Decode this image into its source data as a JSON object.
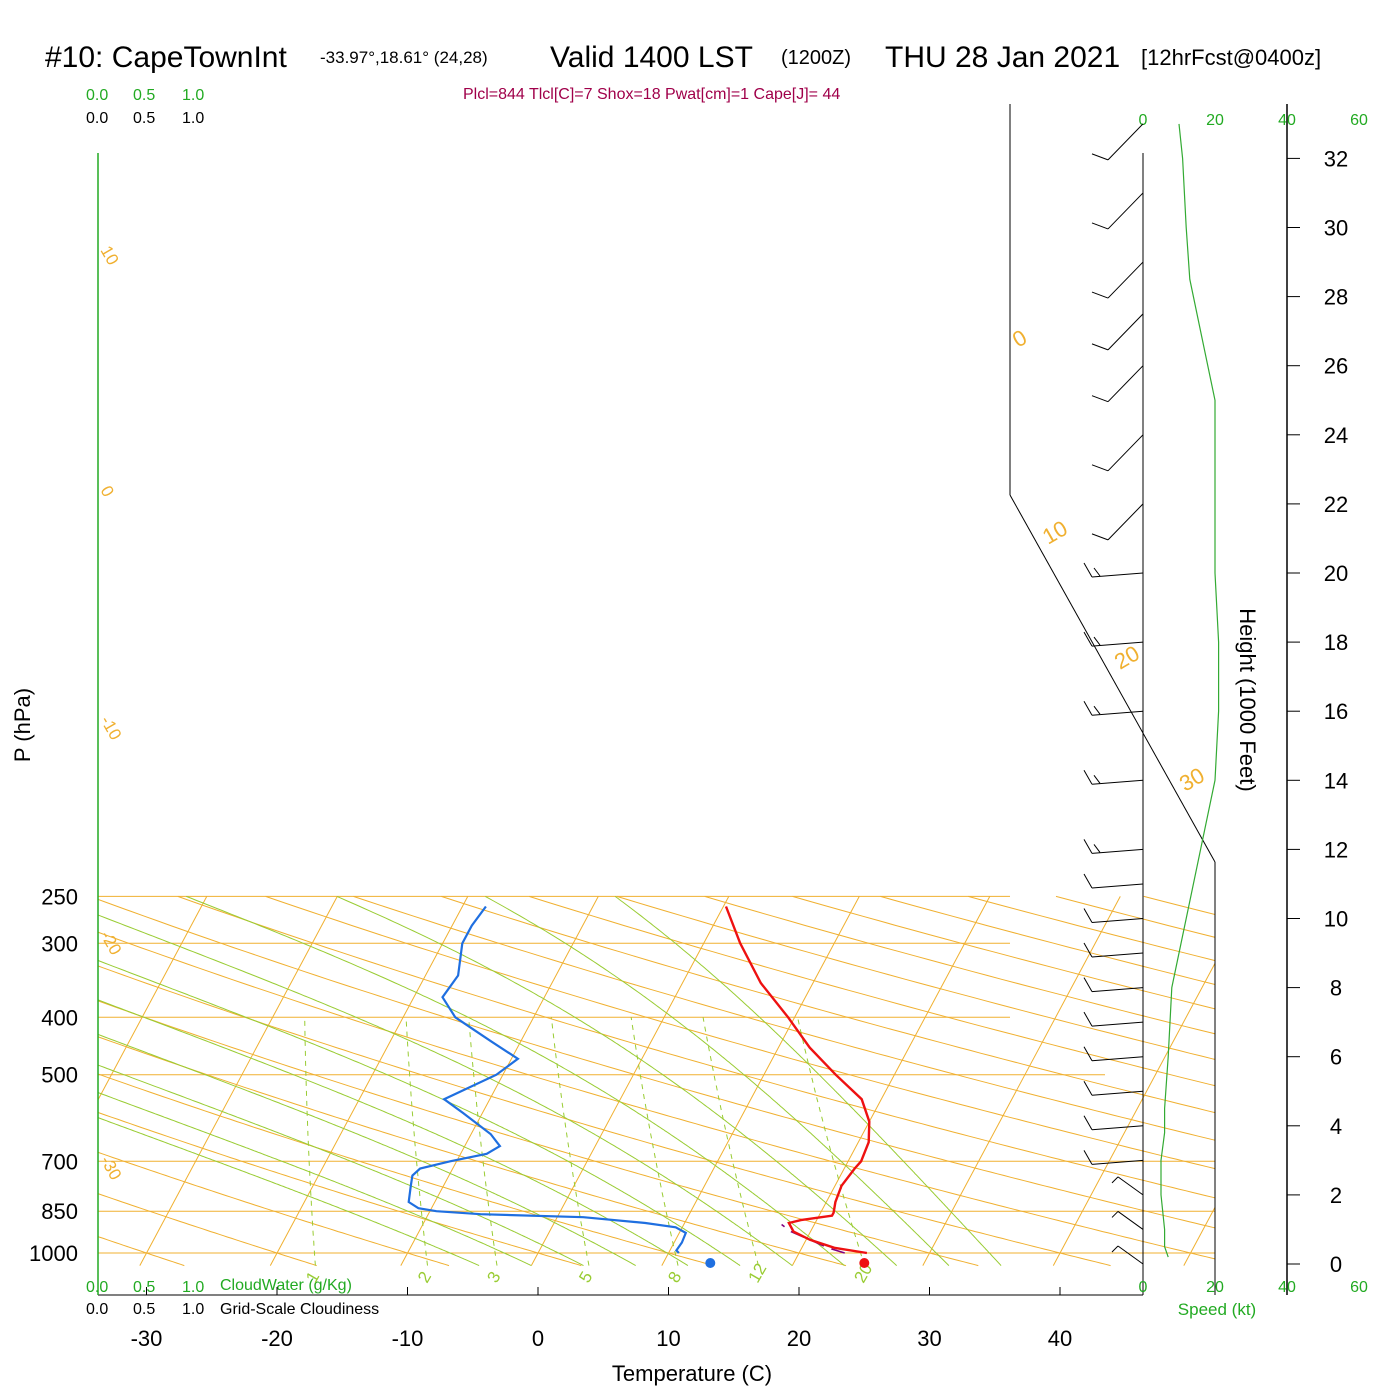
{
  "header": {
    "station": "#10: CapeTownInt",
    "coords": "-33.97°,18.61° (24,28)",
    "valid": "Valid 1400 LST",
    "zulu": "(1200Z)",
    "date": "THU 28 Jan 2021",
    "forecast": "[12hrFcst@0400z]",
    "indices": "Plcl=844 Tlcl[C]=7 Shox=18 Pwat[cm]=1 Cape[J]= 44"
  },
  "colors": {
    "temperature": "#ee1111",
    "dewpoint": "#1f6fe0",
    "parcel": "#800080",
    "isotherm": "#f0b030",
    "dry_adiabat": "#f0b030",
    "moist_adiabat": "#99cc33",
    "mixing_ratio": "#99cc33",
    "speed": "#33aa33",
    "axis_green": "#22aa22"
  },
  "labels": {
    "ylabel": "P (hPa)",
    "xlabel": "Temperature (C)",
    "height_label": "Height (1000 Feet)",
    "speed_label": "Speed (kt)",
    "cloudwater": "CloudWater (g/Kg)",
    "cloudiness": "Grid-Scale Cloudiness",
    "scale_top_green": [
      "0.0",
      "0.5",
      "1.0"
    ],
    "scale_top_black": [
      "0.0",
      "0.5",
      "1.0"
    ],
    "scale_bottom_green": [
      "0.0",
      "0.5",
      "1.0"
    ],
    "scale_bottom_black": [
      "0.0",
      "0.5",
      "1.0"
    ]
  },
  "chart_data": {
    "type": "line",
    "pressure_ticks": [
      250,
      300,
      400,
      500,
      700,
      850,
      1000
    ],
    "temperature_ticks": [
      -30,
      -20,
      -10,
      0,
      10,
      20,
      30,
      40
    ],
    "xlim": [
      -34,
      36
    ],
    "ylim": [
      1050,
      250
    ],
    "height_ticks": [
      0,
      2,
      4,
      6,
      8,
      10,
      12,
      14,
      16,
      18,
      20,
      22,
      24,
      26,
      28,
      30,
      32
    ],
    "speed_ticks": [
      0,
      20,
      40,
      60
    ],
    "isotherm_labels_left": [
      "10",
      "0",
      "-10",
      "-20",
      "-30"
    ],
    "isotherm_labels_right": [
      "0",
      "10",
      "20",
      "30"
    ],
    "mixing_ratio_labels": [
      "1",
      "2",
      "3",
      "5",
      "8",
      "12",
      "20"
    ],
    "temperature_profile": [
      {
        "p": 1000,
        "t": 25.2
      },
      {
        "p": 980,
        "t": 22.5
      },
      {
        "p": 950,
        "t": 20.3
      },
      {
        "p": 920,
        "t": 18.7
      },
      {
        "p": 890,
        "t": 18.0
      },
      {
        "p": 880,
        "t": 18.8
      },
      {
        "p": 865,
        "t": 21.0
      },
      {
        "p": 855,
        "t": 21.0
      },
      {
        "p": 820,
        "t": 20.7
      },
      {
        "p": 770,
        "t": 20.5
      },
      {
        "p": 720,
        "t": 20.8
      },
      {
        "p": 700,
        "t": 21.0
      },
      {
        "p": 650,
        "t": 20.8
      },
      {
        "p": 600,
        "t": 20.0
      },
      {
        "p": 550,
        "t": 18.5
      },
      {
        "p": 500,
        "t": 15.5
      },
      {
        "p": 450,
        "t": 12.4
      },
      {
        "p": 400,
        "t": 9.5
      },
      {
        "p": 350,
        "t": 6.0
      },
      {
        "p": 300,
        "t": 2.8
      },
      {
        "p": 260,
        "t": 0.2
      }
    ],
    "dewpoint_profile": [
      {
        "p": 1000,
        "t": 10.8
      },
      {
        "p": 990,
        "t": 10.5
      },
      {
        "p": 960,
        "t": 10.6
      },
      {
        "p": 925,
        "t": 10.5
      },
      {
        "p": 905,
        "t": 9.5
      },
      {
        "p": 890,
        "t": 7.0
      },
      {
        "p": 870,
        "t": 2.0
      },
      {
        "p": 860,
        "t": -6.0
      },
      {
        "p": 850,
        "t": -9.5
      },
      {
        "p": 840,
        "t": -11.0
      },
      {
        "p": 820,
        "t": -12.0
      },
      {
        "p": 770,
        "t": -12.5
      },
      {
        "p": 740,
        "t": -12.8
      },
      {
        "p": 720,
        "t": -12.5
      },
      {
        "p": 700,
        "t": -10.5
      },
      {
        "p": 680,
        "t": -8.0
      },
      {
        "p": 660,
        "t": -7.3
      },
      {
        "p": 630,
        "t": -8.5
      },
      {
        "p": 580,
        "t": -11.5
      },
      {
        "p": 550,
        "t": -13.5
      },
      {
        "p": 500,
        "t": -10.5
      },
      {
        "p": 470,
        "t": -9.5
      },
      {
        "p": 440,
        "t": -12.2
      },
      {
        "p": 400,
        "t": -16.0
      },
      {
        "p": 370,
        "t": -17.8
      },
      {
        "p": 340,
        "t": -17.5
      },
      {
        "p": 300,
        "t": -18.5
      },
      {
        "p": 280,
        "t": -18.5
      },
      {
        "p": 260,
        "t": -18.2
      }
    ],
    "parcel_profile": [
      {
        "p": 1000,
        "t": 23.5
      },
      {
        "p": 980,
        "t": 22.0
      },
      {
        "p": 950,
        "t": 20.3
      },
      {
        "p": 920,
        "t": 18.5
      },
      {
        "p": 895,
        "t": 17.5
      }
    ],
    "surface_temperature": {
      "p": 1000,
      "t": 25.0
    },
    "surface_dewpoint": {
      "p": 1000,
      "t": 13.2
    },
    "speed_profile": [
      {
        "h": 0.2,
        "s": 7
      },
      {
        "h": 0.5,
        "s": 6
      },
      {
        "h": 1.0,
        "s": 6
      },
      {
        "h": 2.0,
        "s": 5
      },
      {
        "h": 3.0,
        "s": 5
      },
      {
        "h": 3.8,
        "s": 6
      },
      {
        "h": 4.5,
        "s": 6
      },
      {
        "h": 6.0,
        "s": 7
      },
      {
        "h": 8.0,
        "s": 8
      },
      {
        "h": 10.0,
        "s": 12
      },
      {
        "h": 12.0,
        "s": 16
      },
      {
        "h": 14.0,
        "s": 20
      },
      {
        "h": 16.0,
        "s": 21
      },
      {
        "h": 18.0,
        "s": 21
      },
      {
        "h": 20.0,
        "s": 20
      },
      {
        "h": 22.0,
        "s": 20
      },
      {
        "h": 25.0,
        "s": 20
      },
      {
        "h": 27.0,
        "s": 16
      },
      {
        "h": 28.5,
        "s": 13
      },
      {
        "h": 30.0,
        "s": 12
      },
      {
        "h": 32.0,
        "s": 11
      },
      {
        "h": 33.0,
        "s": 10
      }
    ],
    "wind_barbs": [
      {
        "h": 33.0,
        "s": 10,
        "kind": "long"
      },
      {
        "h": 31.0,
        "s": 10,
        "kind": "long"
      },
      {
        "h": 29.0,
        "s": 10,
        "kind": "long"
      },
      {
        "h": 27.5,
        "s": 15,
        "kind": "long-short"
      },
      {
        "h": 26.0,
        "s": 15,
        "kind": "long-short"
      },
      {
        "h": 24.0,
        "s": 15,
        "kind": "long-short"
      },
      {
        "h": 22.0,
        "s": 10,
        "kind": "long"
      },
      {
        "h": 20.0,
        "s": 15,
        "kind": "long-short"
      },
      {
        "h": 18.0,
        "s": 15,
        "kind": "long-short"
      },
      {
        "h": 16.0,
        "s": 15,
        "kind": "long-short"
      },
      {
        "h": 14.0,
        "s": 15,
        "kind": "long-short"
      },
      {
        "h": 12.0,
        "s": 15,
        "kind": "long-short"
      },
      {
        "h": 11.0,
        "s": 10,
        "kind": "long"
      },
      {
        "h": 10.0,
        "s": 10,
        "kind": "long"
      },
      {
        "h": 9.0,
        "s": 10,
        "kind": "long"
      },
      {
        "h": 8.0,
        "s": 10,
        "kind": "long"
      },
      {
        "h": 7.0,
        "s": 10,
        "kind": "long"
      },
      {
        "h": 6.0,
        "s": 10,
        "kind": "long"
      },
      {
        "h": 5.0,
        "s": 10,
        "kind": "long"
      },
      {
        "h": 4.0,
        "s": 10,
        "kind": "long"
      },
      {
        "h": 3.0,
        "s": 10,
        "kind": "long"
      },
      {
        "h": 2.0,
        "s": 5,
        "kind": "short"
      },
      {
        "h": 1.0,
        "s": 5,
        "kind": "short"
      },
      {
        "h": 0.0,
        "s": 5,
        "kind": "short"
      }
    ]
  }
}
